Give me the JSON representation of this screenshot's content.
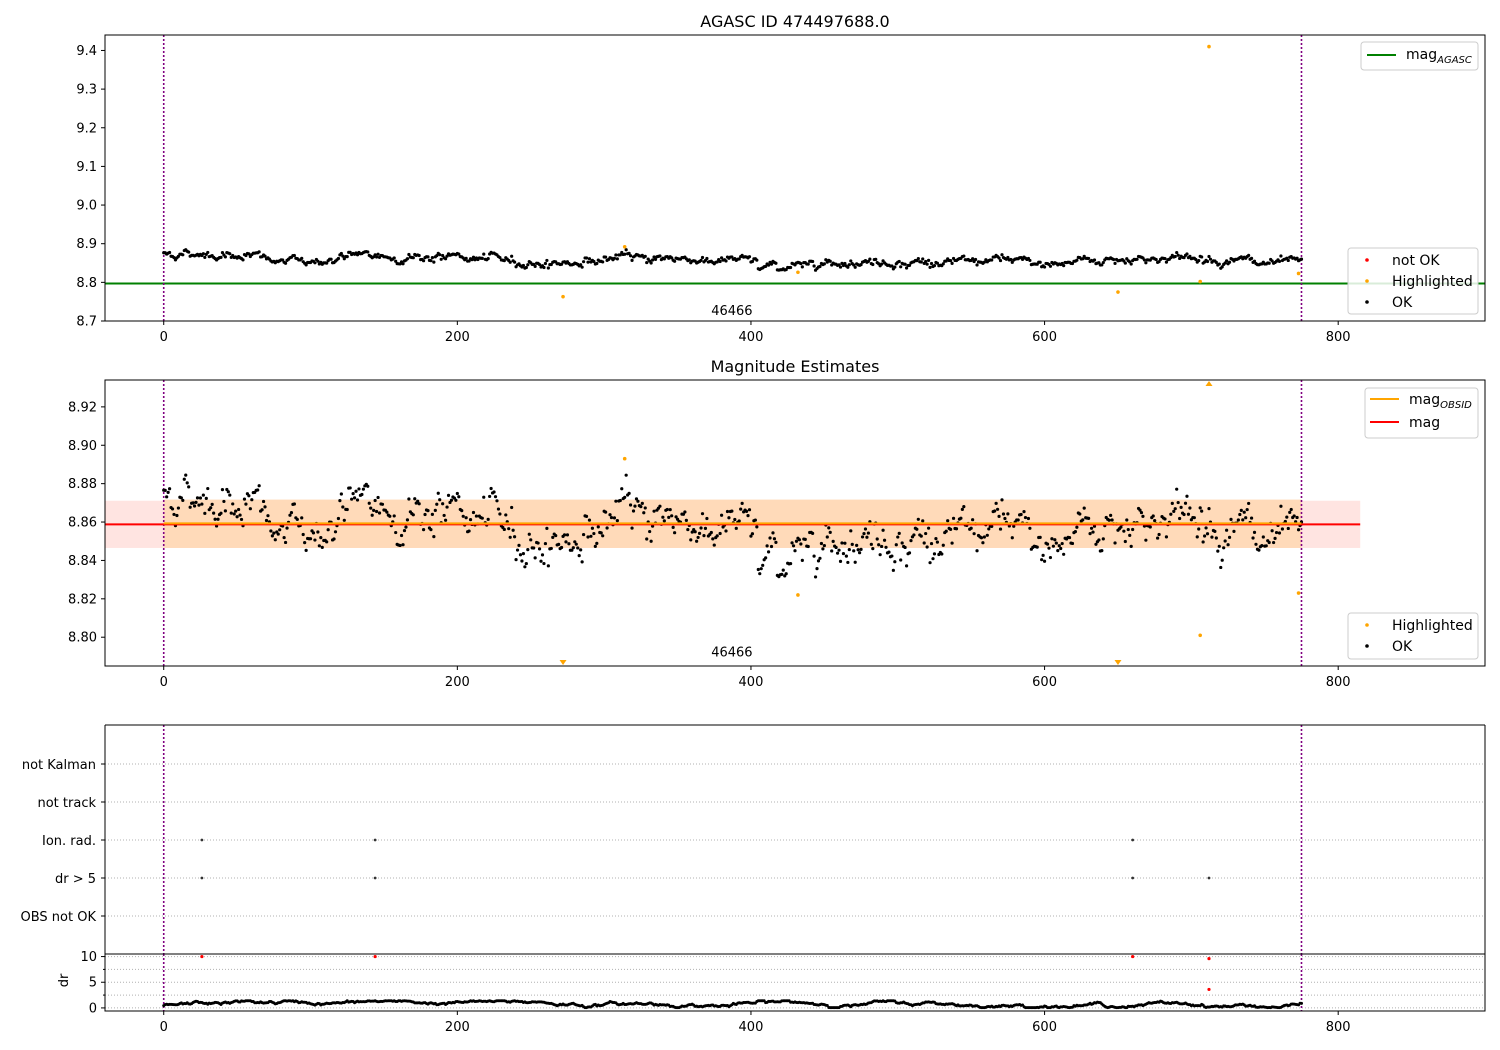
{
  "colors": {
    "ok": "#000000",
    "not_ok": "#ff0000",
    "highlighted": "#ffa500",
    "mag_agasc": "#008000",
    "mag_obsid": "#ffa500",
    "mag": "#ff0000",
    "band_obsid": "#ffdab9",
    "band_mag": "#ffe4e1",
    "obsid_boundary": "#800080",
    "grid": "#b0b0b0"
  },
  "chart_data": [
    {
      "type": "scatter",
      "title": "AGASC ID 474497688.0",
      "xlim": [
        -40,
        900
      ],
      "ylim": [
        8.7,
        9.44
      ],
      "x_ticks": [
        0,
        200,
        400,
        600,
        800
      ],
      "y_ticks": [
        8.7,
        8.8,
        8.9,
        9.0,
        9.1,
        9.2,
        9.3,
        9.4
      ],
      "y_tick_labels": [
        "8.7",
        "8.8",
        "8.9",
        "9.0",
        "9.1",
        "9.2",
        "9.3",
        "9.4"
      ],
      "vlines": [
        0,
        775
      ],
      "hline": {
        "name": "mag_AGASC",
        "y": 8.797
      },
      "annotation": {
        "text": "46466",
        "x": 387,
        "y": 8.71
      },
      "legend_top": [
        {
          "label": "mag",
          "subscript": "AGASC",
          "color_key": "mag_agasc",
          "kind": "line"
        }
      ],
      "legend_bottom": [
        {
          "label": "not OK",
          "color_key": "not_ok",
          "kind": "dot"
        },
        {
          "label": "Highlighted",
          "color_key": "highlighted",
          "kind": "dot"
        },
        {
          "label": "OK",
          "color_key": "ok",
          "kind": "dot"
        }
      ],
      "series": [
        {
          "name": "OK",
          "n": 776,
          "x_range": [
            0,
            775
          ],
          "mean": 8.859,
          "note_points": "dense band of black points between 8.83 and 8.89"
        },
        {
          "name": "Highlighted",
          "x": [
            272,
            314,
            432,
            650,
            706,
            712,
            773
          ],
          "y": [
            8.763,
            8.892,
            8.826,
            8.775,
            8.802,
            9.41,
            8.823
          ]
        }
      ]
    },
    {
      "type": "scatter",
      "title": "Magnitude Estimates",
      "xlim": [
        -40,
        900
      ],
      "ylim": [
        8.785,
        8.934
      ],
      "x_ticks": [
        0,
        200,
        400,
        600,
        800
      ],
      "y_ticks": [
        8.8,
        8.82,
        8.84,
        8.86,
        8.88,
        8.9,
        8.92
      ],
      "y_tick_labels": [
        "8.80",
        "8.82",
        "8.84",
        "8.86",
        "8.88",
        "8.90",
        "8.92"
      ],
      "vlines": [
        0,
        775
      ],
      "mag": {
        "value": 8.8588,
        "band": [
          8.8465,
          8.8711
        ],
        "x_range": [
          -40,
          815
        ]
      },
      "mag_obsid": {
        "value": 8.8593,
        "band": [
          8.8465,
          8.8717
        ],
        "x_range": [
          0,
          775
        ]
      },
      "annotation": {
        "text": "46466",
        "x": 387,
        "y": 8.789
      },
      "legend_top": [
        {
          "label": "mag",
          "subscript": "OBSID",
          "color_key": "mag_obsid",
          "kind": "line"
        },
        {
          "label": "mag",
          "subscript": "",
          "color_key": "mag",
          "kind": "line"
        }
      ],
      "legend_bottom": [
        {
          "label": "Highlighted",
          "color_key": "highlighted",
          "kind": "dot"
        },
        {
          "label": "OK",
          "color_key": "ok",
          "kind": "dot"
        }
      ],
      "series": [
        {
          "name": "OK",
          "n": 776,
          "x_range": [
            0,
            775
          ]
        },
        {
          "name": "Highlighted",
          "x": [
            314,
            432,
            706,
            773
          ],
          "y": [
            8.893,
            8.822,
            8.801,
            8.823
          ]
        },
        {
          "name": "Highlighted (off-scale)",
          "x": [
            272,
            650,
            712
          ],
          "y": [
            "below",
            "below",
            "above"
          ]
        }
      ]
    },
    {
      "type": "scatter",
      "title": "",
      "xlim": [
        -40,
        900
      ],
      "categories": [
        "not Kalman",
        "not track",
        "Ion. rad.",
        "dr > 5",
        "OBS not OK"
      ],
      "vlines": [
        0,
        775
      ],
      "series": [
        {
          "name": "Ion. rad.",
          "x": [
            26,
            144,
            660
          ]
        },
        {
          "name": "dr > 5",
          "x": [
            26,
            144,
            660,
            712
          ]
        }
      ]
    },
    {
      "type": "scatter",
      "title": "",
      "xlim": [
        -40,
        900
      ],
      "ylim": [
        -0.6,
        10.5
      ],
      "x_ticks": [
        0,
        200,
        400,
        600,
        800
      ],
      "y_ticks": [
        0,
        5,
        10
      ],
      "y_tick_labels": [
        "0",
        "5",
        "10"
      ],
      "ylabel": "dr",
      "vlines": [
        0,
        775
      ],
      "series": [
        {
          "name": "OK",
          "n": 776,
          "x_range": [
            0,
            775
          ]
        },
        {
          "name": "not OK",
          "x": [
            26,
            144,
            660,
            712,
            712
          ],
          "y": [
            10,
            10,
            10,
            9.6,
            3.6
          ]
        }
      ]
    }
  ]
}
